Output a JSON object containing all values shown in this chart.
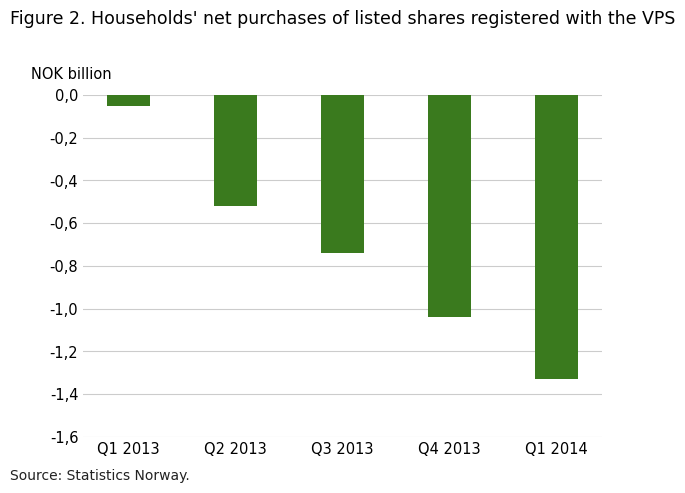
{
  "title": "Figure 2. Households' net purchases of listed shares registered with the VPS",
  "ylabel": "NOK billion",
  "categories": [
    "Q1 2013",
    "Q2 2013",
    "Q3 2013",
    "Q4 2013",
    "Q1 2014"
  ],
  "values": [
    -0.05,
    -0.52,
    -0.74,
    -1.04,
    -1.33
  ],
  "bar_color": "#3a7a1e",
  "ylim": [
    -1.6,
    0.0
  ],
  "yticks": [
    0.0,
    -0.2,
    -0.4,
    -0.6,
    -0.8,
    -1.0,
    -1.2,
    -1.4,
    -1.6
  ],
  "source": "Source: Statistics Norway.",
  "background_color": "#ffffff",
  "grid_color": "#cccccc",
  "title_fontsize": 12.5,
  "label_fontsize": 10.5,
  "tick_fontsize": 10.5,
  "source_fontsize": 10,
  "bar_width": 0.4
}
